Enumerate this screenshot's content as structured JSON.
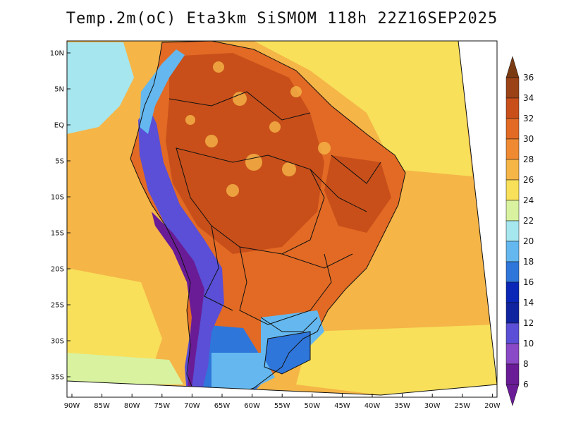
{
  "title": "Temp.2m(oC) Eta3km SiSMOM 118h 22Z16SEP2025",
  "map": {
    "lat_labels": [
      "10N",
      "5N",
      "EQ",
      "5S",
      "10S",
      "15S",
      "20S",
      "25S",
      "30S",
      "35S"
    ],
    "lon_labels": [
      "90W",
      "85W",
      "80W",
      "75W",
      "70W",
      "65W",
      "60W",
      "55W",
      "50W",
      "45W",
      "40W",
      "35W",
      "30W",
      "25W",
      "20W"
    ],
    "colorbar_labels": [
      "36",
      "34",
      "32",
      "30",
      "28",
      "26",
      "24",
      "22",
      "20",
      "18",
      "16",
      "14",
      "12",
      "10",
      "8",
      "6"
    ],
    "colorbar_colors": [
      "#7a3a12",
      "#9b4317",
      "#c84f1a",
      "#e26a24",
      "#f08a32",
      "#f5b547",
      "#f8e05a",
      "#d8f2a0",
      "#a6e6ef",
      "#64b8ef",
      "#2f76db",
      "#0a27b8",
      "#1024a0",
      "#5a4fd6",
      "#8a49c6",
      "#6a1c96"
    ],
    "colors": {
      "ocean_warm": "#f5b547",
      "ocean_mid": "#f8e05a",
      "ocean_cool": "#a6e6ef",
      "land_hot": "#c84f1a",
      "land_warm": "#e26a24",
      "andes": "#5a4fd6",
      "andes_cold": "#6a1c96",
      "south_cool": "#2f76db",
      "border": "#111111"
    }
  }
}
